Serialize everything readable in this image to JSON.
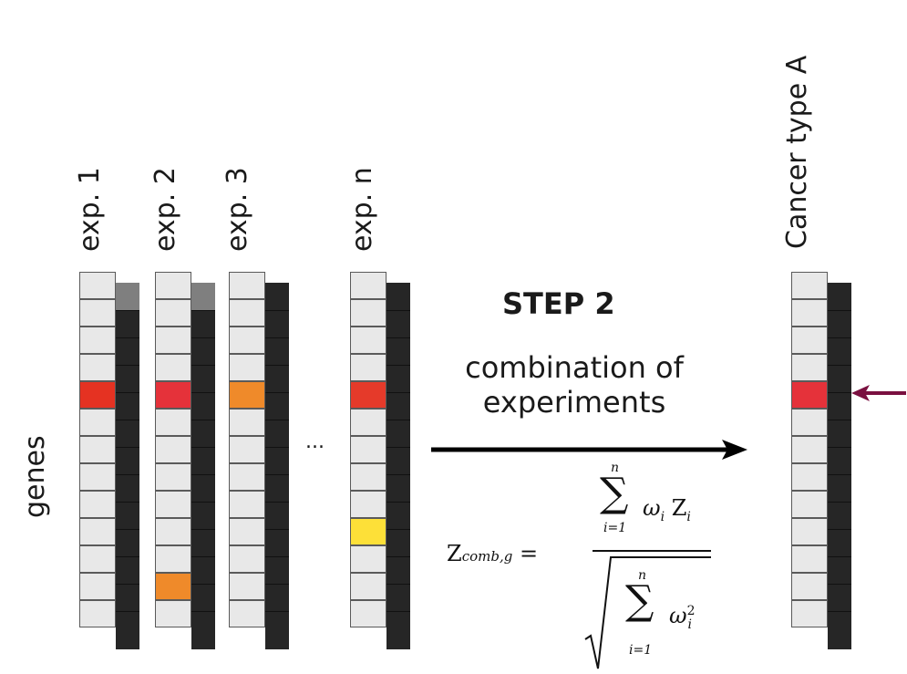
{
  "labels": {
    "genes": "genes",
    "ellipsis": "...",
    "step": "STEP 2",
    "desc_line1": "combination of",
    "desc_line2": "experiments"
  },
  "experiments": [
    {
      "label": "exp. 1",
      "top_shade": "#7f7f7f",
      "highlights": [
        {
          "row": 4,
          "color": "#e53222"
        }
      ]
    },
    {
      "label": "exp. 2",
      "top_shade": "#7f7f7f",
      "highlights": [
        {
          "row": 4,
          "color": "#e5323a"
        },
        {
          "row": 11,
          "color": "#ef8a2a"
        }
      ]
    },
    {
      "label": "exp. 3",
      "top_shade": "#262626",
      "highlights": [
        {
          "row": 4,
          "color": "#ef8a2a"
        }
      ]
    },
    {
      "label": "exp. n",
      "top_shade": "#262626",
      "highlights": [
        {
          "row": 4,
          "color": "#e53a2a"
        },
        {
          "row": 9,
          "color": "#fde038"
        }
      ]
    }
  ],
  "result": {
    "label": "Cancer type A",
    "top_shade": "#262626",
    "highlights": [
      {
        "row": 4,
        "color": "#e5323a"
      }
    ]
  },
  "rows": 13,
  "arrow_color": "#7a1040",
  "formula": {
    "lhs_main": "Z",
    "lhs_sub": "comb,g",
    "equals": "=",
    "sum_symbol": "∑",
    "upper_limit": "n",
    "lower_limit": "i=1",
    "numerator_term": "ωi Zi",
    "denominator_term": "ωi2"
  }
}
